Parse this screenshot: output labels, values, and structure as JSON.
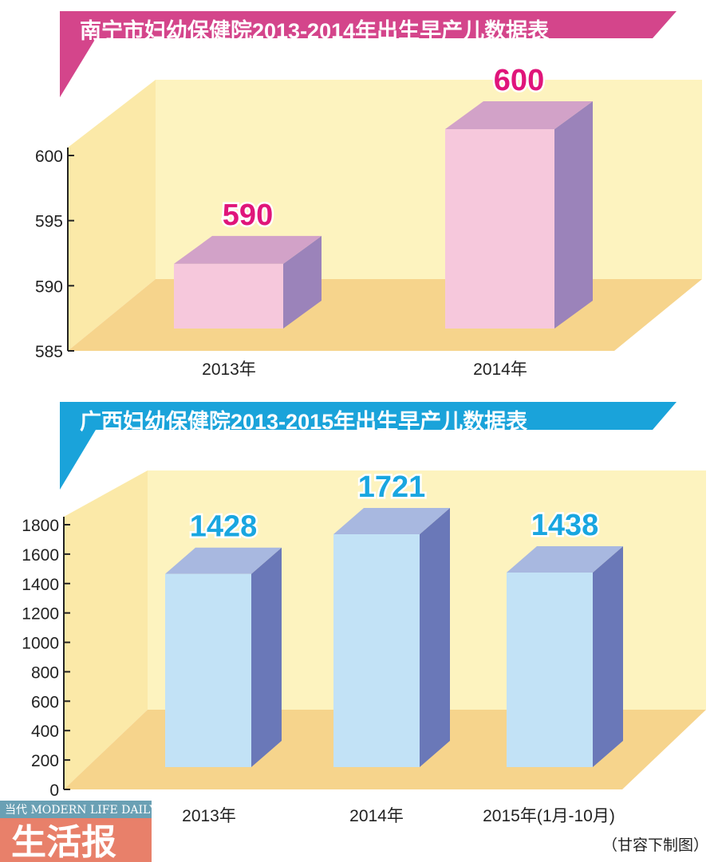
{
  "chart_data": [
    {
      "type": "bar",
      "title": "南宁市妇幼保健院2013-2014年出生早产儿数据表",
      "categories": [
        "2013年",
        "2014年"
      ],
      "values": [
        590,
        600
      ],
      "data_labels": [
        "590",
        "600"
      ],
      "yticks": [
        "585",
        "590",
        "595",
        "600"
      ],
      "ylim": [
        585,
        600
      ],
      "xlabel": "",
      "ylabel": "",
      "colors": {
        "banner": "#d4458b",
        "label": "#e0157a",
        "front": "#f6c8dc",
        "top": "#d2a2c8",
        "side": "#9b83ba"
      }
    },
    {
      "type": "bar",
      "title": "广西妇幼保健院2013-2015年出生早产儿数据表",
      "categories": [
        "2013年",
        "2014年",
        "2015年(1月-10月)"
      ],
      "values": [
        1428,
        1721,
        1438
      ],
      "data_labels": [
        "1428",
        "1721",
        "1438"
      ],
      "yticks": [
        "0",
        "200",
        "400",
        "600",
        "800",
        "1000",
        "1200",
        "1400",
        "1600",
        "1800"
      ],
      "ylim": [
        0,
        1800
      ],
      "xlabel": "",
      "ylabel": "",
      "colors": {
        "banner": "#1aa3da",
        "label": "#19a6e0",
        "front": "#c2e2f6",
        "top": "#a8b8e0",
        "side": "#6a78b8"
      }
    }
  ],
  "credit": "（甘容下制图）",
  "watermark": {
    "top": "当代 MODERN LIFE DAILY",
    "main": "生活报"
  }
}
